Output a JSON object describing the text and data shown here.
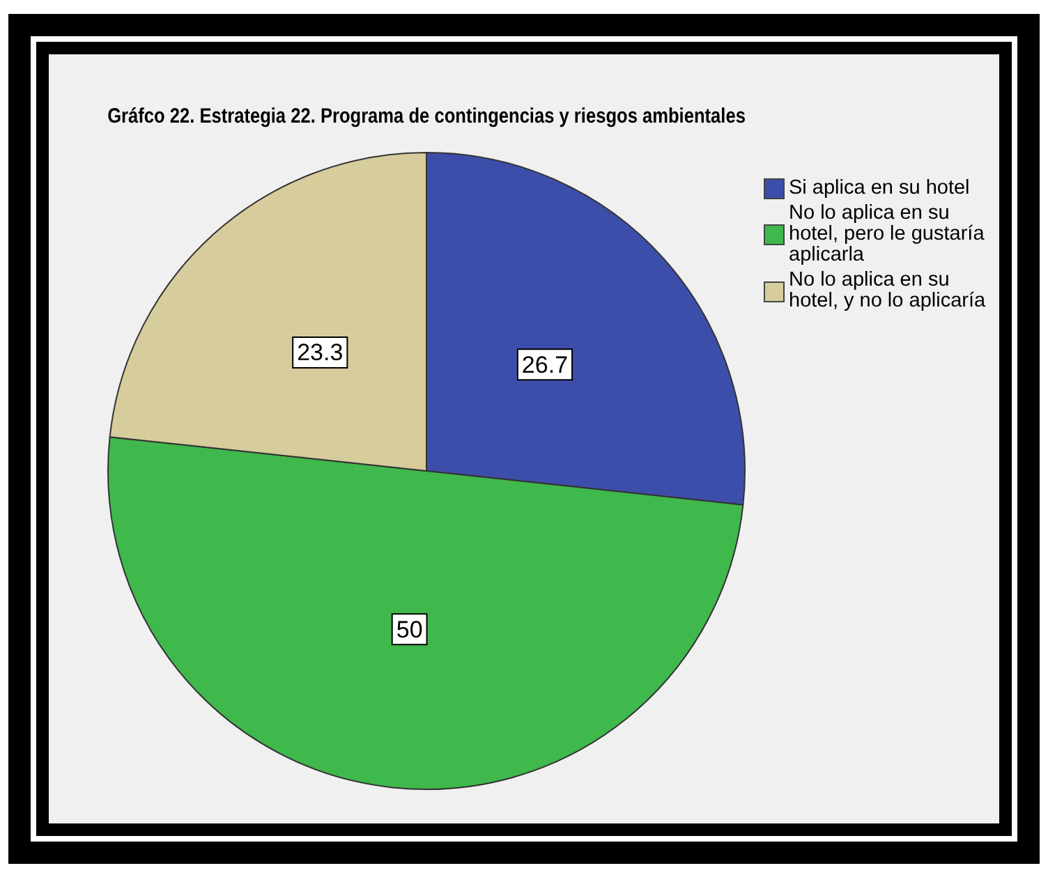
{
  "chart_data": {
    "type": "pie",
    "title": "Gráfco 22. Estrategia 22. Programa de contingencias y riesgos ambientales",
    "categories": [
      "Si aplica en su hotel",
      "No lo aplica en su hotel, pero le gustaría aplicarla",
      "No lo aplica en su hotel, y no lo aplicaría"
    ],
    "values": [
      26.7,
      50,
      23.3
    ],
    "colors": [
      "#3d4eaa",
      "#3fb84c",
      "#d6cc9c"
    ],
    "data_labels": true,
    "legend": "right"
  }
}
